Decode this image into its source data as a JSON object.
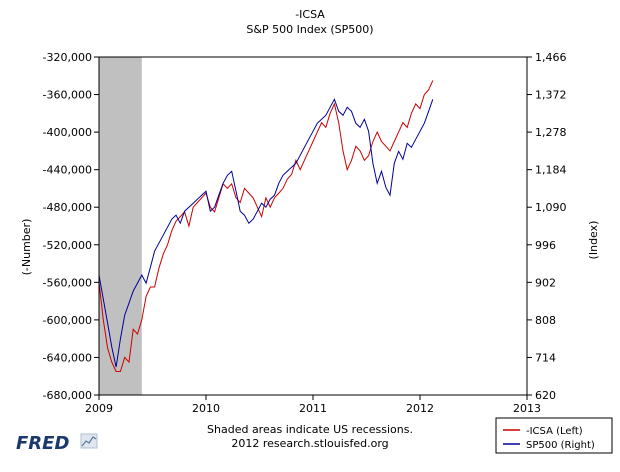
{
  "chart_data": {
    "type": "line",
    "title": "-ICSA",
    "subtitle": "S&P 500 Index (SP500)",
    "ylabel_left": "(-Number)",
    "ylabel_right": "(Index)",
    "xlabel": "",
    "x_range": [
      2009.0,
      2013.0
    ],
    "x_ticks": [
      "2009",
      "2010",
      "2011",
      "2012",
      "2013"
    ],
    "ylim_left": [
      -680000,
      -320000
    ],
    "yticks_left": [
      "-320,000",
      "-360,000",
      "-400,000",
      "-440,000",
      "-480,000",
      "-520,000",
      "-560,000",
      "-600,000",
      "-640,000",
      "-680,000"
    ],
    "ylim_right": [
      620,
      1466
    ],
    "yticks_right": [
      "1,466",
      "1,372",
      "1,278",
      "1,184",
      "1,090",
      "996",
      "902",
      "808",
      "714",
      "620"
    ],
    "grid": false,
    "legend_position": "bottom-right",
    "recession_band": [
      2009.0,
      2009.4
    ],
    "series": [
      {
        "name": "-ICSA (Left)",
        "axis": "left",
        "color": "#cc0000",
        "x": [
          2009.0,
          2009.04,
          2009.08,
          2009.12,
          2009.16,
          2009.2,
          2009.24,
          2009.28,
          2009.32,
          2009.36,
          2009.4,
          2009.44,
          2009.48,
          2009.52,
          2009.56,
          2009.6,
          2009.64,
          2009.68,
          2009.72,
          2009.76,
          2009.8,
          2009.84,
          2009.88,
          2009.92,
          2009.96,
          2010.0,
          2010.04,
          2010.08,
          2010.12,
          2010.16,
          2010.2,
          2010.24,
          2010.28,
          2010.32,
          2010.36,
          2010.4,
          2010.44,
          2010.48,
          2010.52,
          2010.56,
          2010.6,
          2010.64,
          2010.68,
          2010.72,
          2010.76,
          2010.8,
          2010.84,
          2010.88,
          2010.92,
          2010.96,
          2011.0,
          2011.04,
          2011.08,
          2011.12,
          2011.16,
          2011.2,
          2011.24,
          2011.28,
          2011.32,
          2011.36,
          2011.4,
          2011.44,
          2011.48,
          2011.52,
          2011.56,
          2011.6,
          2011.64,
          2011.68,
          2011.72,
          2011.76,
          2011.8,
          2011.84,
          2011.88,
          2011.92,
          2011.96,
          2012.0,
          2012.04,
          2012.08,
          2012.12
        ],
        "y": [
          -560000,
          -600000,
          -630000,
          -645000,
          -655000,
          -655000,
          -640000,
          -645000,
          -610000,
          -615000,
          -600000,
          -575000,
          -565000,
          -565000,
          -545000,
          -530000,
          -520000,
          -505000,
          -495000,
          -490000,
          -485000,
          -500000,
          -480000,
          -475000,
          -470000,
          -465000,
          -480000,
          -485000,
          -470000,
          -455000,
          -460000,
          -455000,
          -470000,
          -475000,
          -460000,
          -465000,
          -470000,
          -480000,
          -490000,
          -470000,
          -480000,
          -470000,
          -465000,
          -460000,
          -450000,
          -445000,
          -430000,
          -440000,
          -430000,
          -420000,
          -410000,
          -400000,
          -390000,
          -395000,
          -380000,
          -370000,
          -390000,
          -420000,
          -440000,
          -430000,
          -415000,
          -420000,
          -430000,
          -425000,
          -410000,
          -400000,
          -410000,
          -415000,
          -420000,
          -410000,
          -400000,
          -390000,
          -395000,
          -380000,
          -370000,
          -375000,
          -360000,
          -355000,
          -345000
        ]
      },
      {
        "name": "SP500 (Right)",
        "axis": "right",
        "color": "#000099",
        "x": [
          2009.0,
          2009.04,
          2009.08,
          2009.12,
          2009.16,
          2009.2,
          2009.24,
          2009.28,
          2009.32,
          2009.36,
          2009.4,
          2009.44,
          2009.48,
          2009.52,
          2009.56,
          2009.6,
          2009.64,
          2009.68,
          2009.72,
          2009.76,
          2009.8,
          2009.84,
          2009.88,
          2009.92,
          2009.96,
          2010.0,
          2010.04,
          2010.08,
          2010.12,
          2010.16,
          2010.2,
          2010.24,
          2010.28,
          2010.32,
          2010.36,
          2010.4,
          2010.44,
          2010.48,
          2010.52,
          2010.56,
          2010.6,
          2010.64,
          2010.68,
          2010.72,
          2010.76,
          2010.8,
          2010.84,
          2010.88,
          2010.92,
          2010.96,
          2011.0,
          2011.04,
          2011.08,
          2011.12,
          2011.16,
          2011.2,
          2011.24,
          2011.28,
          2011.32,
          2011.36,
          2011.4,
          2011.44,
          2011.48,
          2011.52,
          2011.56,
          2011.6,
          2011.64,
          2011.68,
          2011.72,
          2011.76,
          2011.8,
          2011.84,
          2011.88,
          2011.92,
          2011.96,
          2012.0,
          2012.04,
          2012.08,
          2012.12
        ],
        "y": [
          920,
          860,
          800,
          740,
          690,
          760,
          820,
          850,
          880,
          900,
          920,
          900,
          940,
          980,
          1000,
          1020,
          1040,
          1060,
          1070,
          1050,
          1080,
          1090,
          1100,
          1110,
          1120,
          1130,
          1080,
          1090,
          1120,
          1150,
          1170,
          1180,
          1130,
          1080,
          1070,
          1050,
          1060,
          1080,
          1100,
          1090,
          1110,
          1120,
          1150,
          1170,
          1180,
          1190,
          1200,
          1220,
          1240,
          1260,
          1280,
          1300,
          1310,
          1320,
          1340,
          1360,
          1330,
          1320,
          1340,
          1330,
          1300,
          1290,
          1310,
          1280,
          1200,
          1150,
          1180,
          1140,
          1120,
          1200,
          1230,
          1210,
          1250,
          1240,
          1260,
          1280,
          1300,
          1330,
          1360
        ]
      }
    ],
    "notes": [
      "Shaded areas indicate US recessions.",
      "2012 research.stlouisfed.org"
    ],
    "logo_text": "FRED"
  }
}
